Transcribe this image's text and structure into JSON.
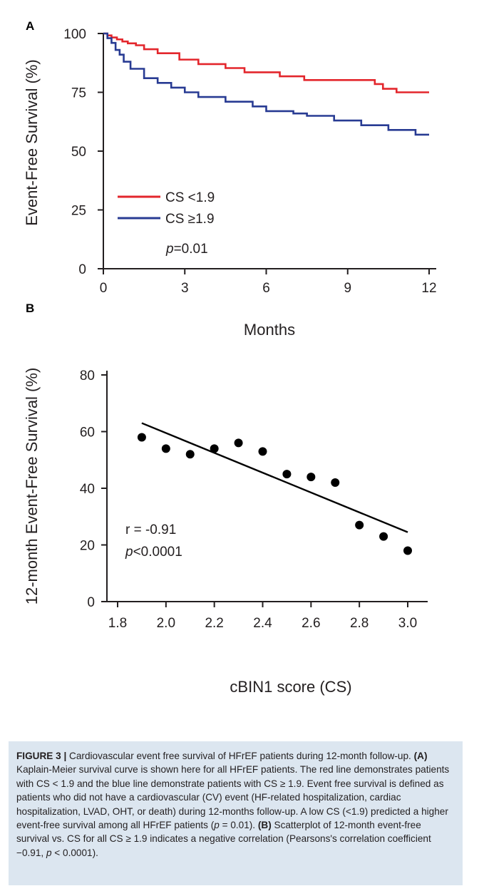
{
  "figure": {
    "panels": [
      "A",
      "B"
    ],
    "caption": {
      "label": "FIGURE 3 |",
      "segments": [
        {
          "text": " Cardiovascular event free survival of HFrEF patients during 12-month follow-up. ",
          "bold": false
        },
        {
          "text": "(A)",
          "bold": true
        },
        {
          "text": " Kaplain-Meier survival curve is shown here for all HFrEF patients. The red line demonstrates patients with CS < 1.9 and the blue line demonstrate patients with CS ≥ 1.9. Event free survival is defined as patients who did not have a cardiovascular (CV) event (HF-related hospitalization, cardiac hospitalization, LVAD, OHT, or death) during 12-months follow-up. A low CS (<1.9) predicted a higher event-free survival among all HFrEF patients (",
          "bold": false
        },
        {
          "text": "p",
          "bold": false,
          "italic": true
        },
        {
          "text": " = 0.01). ",
          "bold": false
        },
        {
          "text": "(B)",
          "bold": true
        },
        {
          "text": " Scatterplot of 12-month event-free survival vs. CS for all CS ≥ 1.9 indicates a negative correlation (Pearsons's correlation coefficient −0.91, ",
          "bold": false
        },
        {
          "text": "p",
          "bold": false,
          "italic": true
        },
        {
          "text": " < 0.0001).",
          "bold": false
        }
      ]
    }
  },
  "chart_data": [
    {
      "panel": "A",
      "type": "line",
      "step": true,
      "ylabel": "Event-Free Survival (%)",
      "xlabel": "Months",
      "xlim": [
        0,
        12
      ],
      "ylim": [
        0,
        100
      ],
      "xticks": [
        0,
        3,
        6,
        9,
        12
      ],
      "yticks": [
        0,
        25,
        50,
        75,
        100
      ],
      "legend_position": "bottom-left",
      "annotation": {
        "italic": "p",
        "rest": "=0.01"
      },
      "series": [
        {
          "name": "CS <1.9",
          "color": "#e3262c",
          "x": [
            0,
            0.15,
            0.3,
            0.5,
            0.7,
            0.9,
            1.2,
            1.5,
            2.0,
            2.8,
            3.5,
            4.5,
            5.2,
            6.5,
            7.4,
            10.0,
            10.3,
            10.8,
            12.0
          ],
          "y": [
            100,
            99.2,
            98.3,
            97.5,
            96.6,
            95.8,
            95.0,
            93.3,
            91.6,
            88.9,
            87.0,
            85.3,
            83.5,
            81.8,
            80.2,
            78.5,
            76.5,
            75.0,
            75.0
          ]
        },
        {
          "name": "CS ≥1.9",
          "color": "#283b93",
          "x": [
            0,
            0.15,
            0.3,
            0.45,
            0.6,
            0.75,
            1.0,
            1.5,
            2.0,
            2.5,
            3.0,
            3.5,
            4.5,
            5.5,
            6.0,
            7.0,
            7.5,
            8.5,
            9.5,
            10.5,
            11.5,
            12.0
          ],
          "y": [
            100,
            98.0,
            96.0,
            93.0,
            91.0,
            88.0,
            85.0,
            81.0,
            79.0,
            77.0,
            75.0,
            73.0,
            71.0,
            69.0,
            67.0,
            66.0,
            65.0,
            63.0,
            61.0,
            59.0,
            57.0,
            57.0
          ]
        }
      ]
    },
    {
      "panel": "B",
      "type": "scatter",
      "ylabel": "12-month Event-Free Survival (%)",
      "xlabel": "cBIN1 score (CS)",
      "xlim": [
        1.8,
        3.0
      ],
      "ylim": [
        0,
        80
      ],
      "xticks": [
        "1.8",
        "2.0",
        "2.2",
        "2.4",
        "2.6",
        "2.8",
        "3.0"
      ],
      "yticks": [
        "0",
        "20",
        "40",
        "60",
        "80"
      ],
      "points": {
        "x": [
          1.9,
          2.0,
          2.1,
          2.2,
          2.3,
          2.4,
          2.5,
          2.6,
          2.7,
          2.8,
          2.9,
          3.0
        ],
        "y": [
          58,
          54,
          52,
          54,
          56,
          53,
          45,
          44,
          42,
          27,
          23,
          18
        ]
      },
      "regression_line": {
        "x": [
          1.9,
          3.0
        ],
        "y": [
          63,
          24.5
        ]
      },
      "annotation_r": "r = -0.91",
      "annotation_p": {
        "italic": "p",
        "rest": "<0.0001"
      }
    }
  ]
}
